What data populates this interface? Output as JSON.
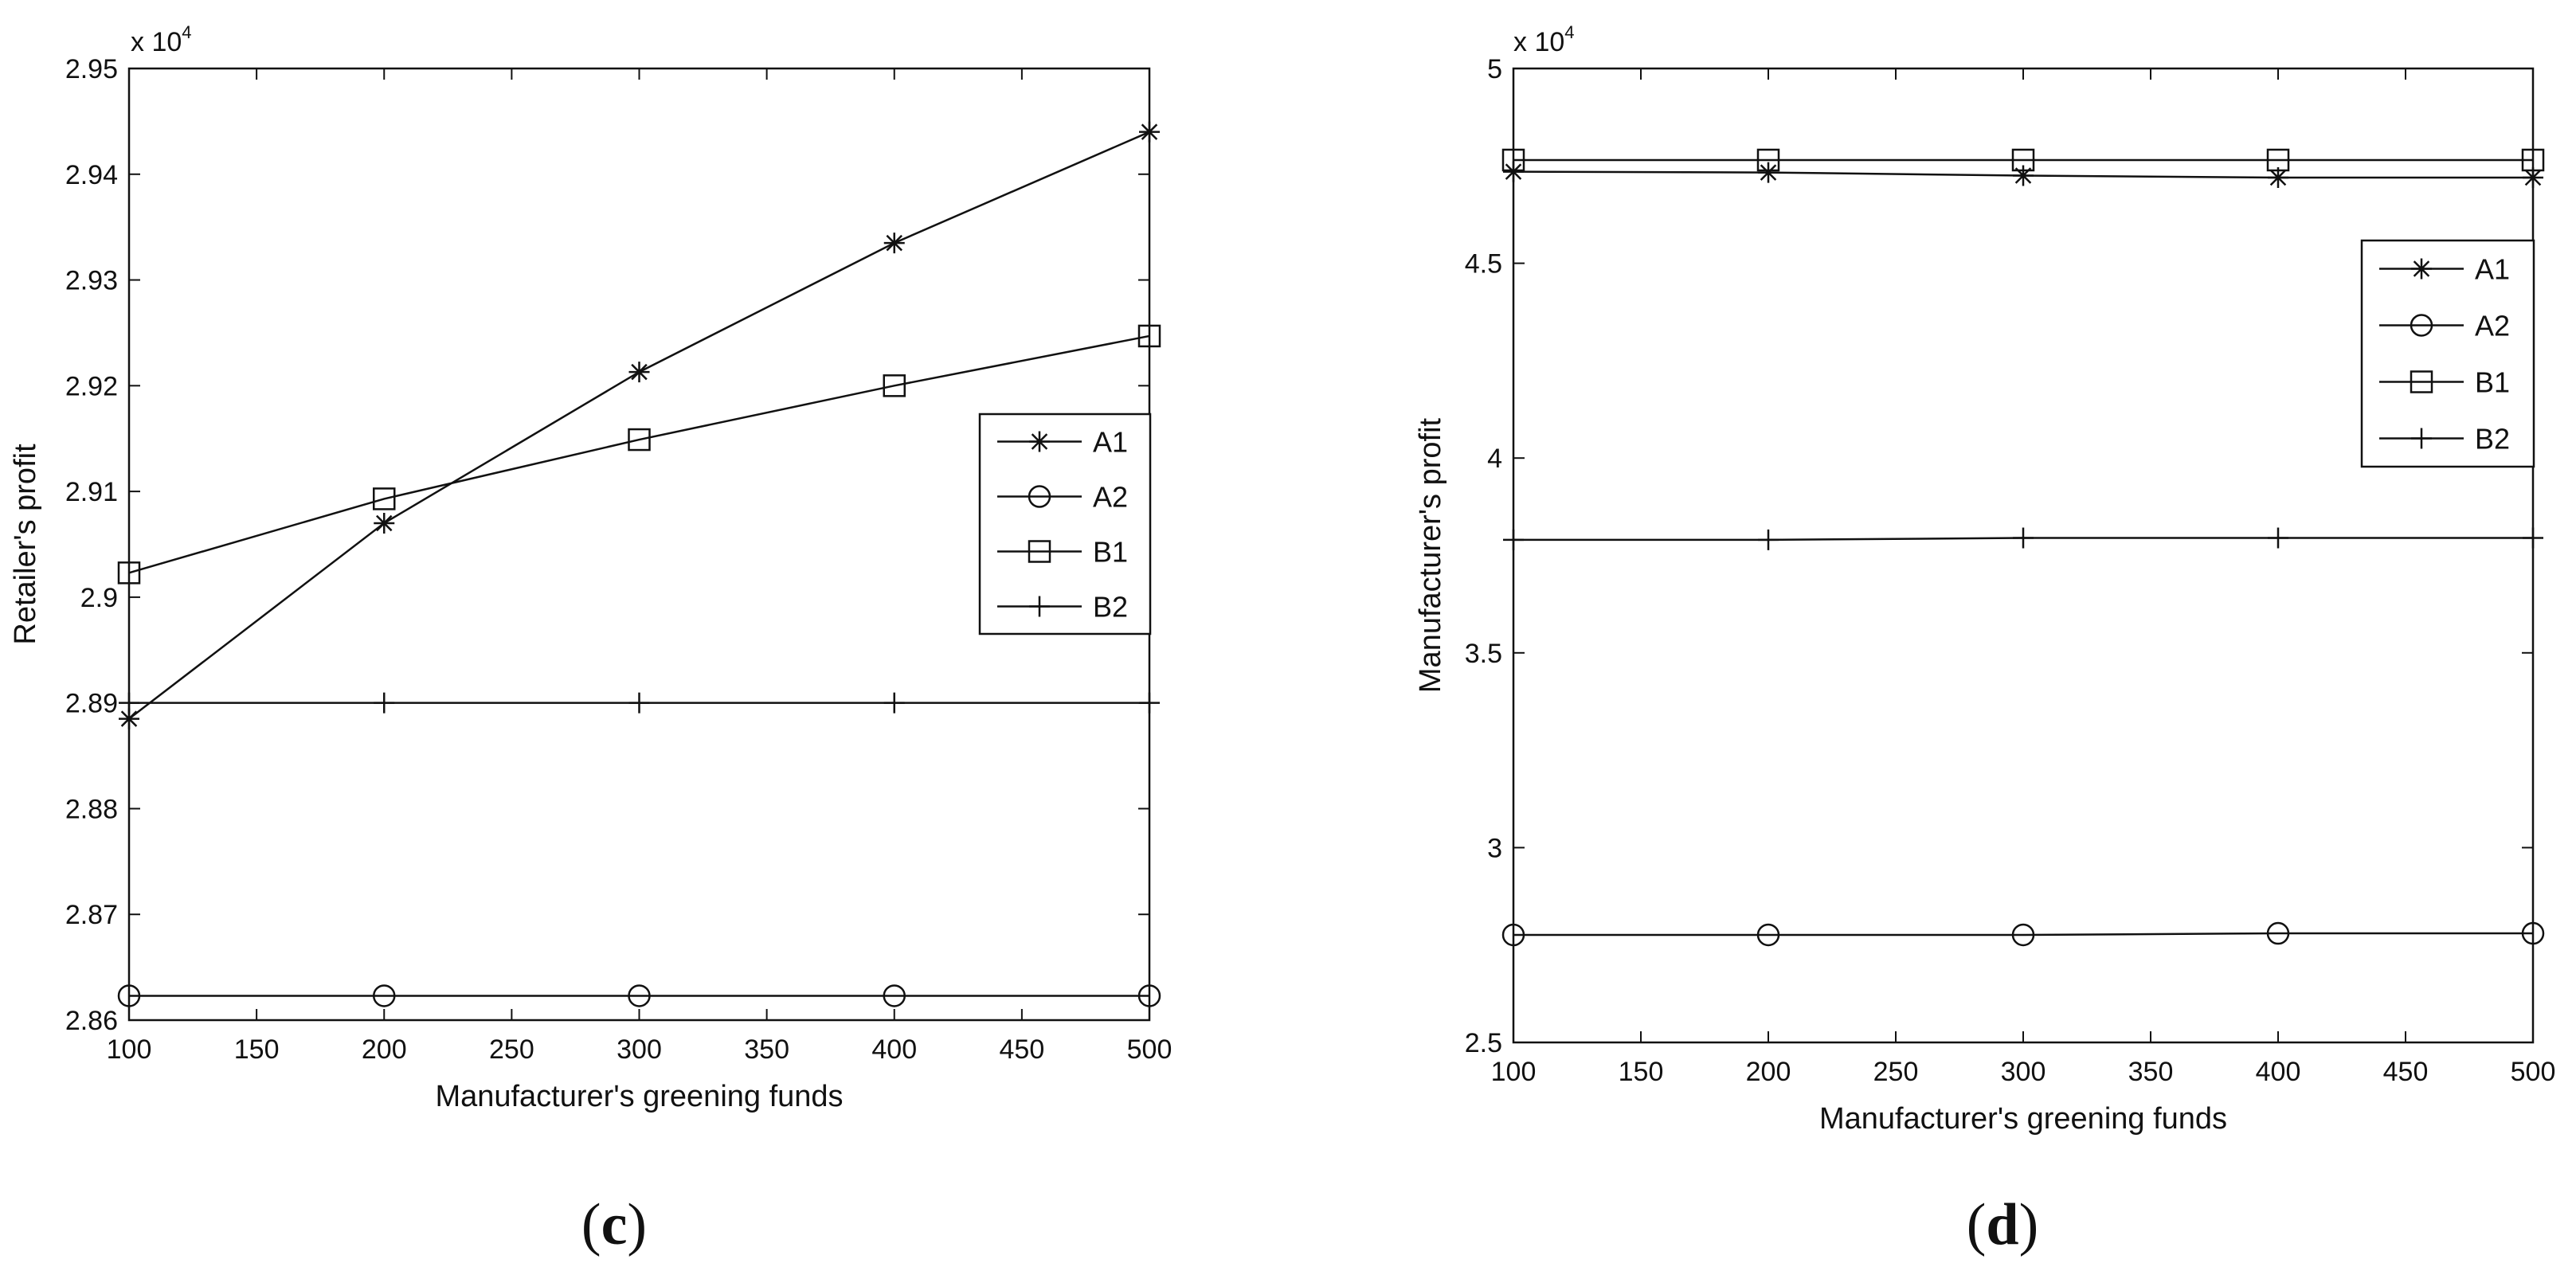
{
  "chart_data": [
    {
      "type": "line",
      "panel_label": "(c)",
      "panel_letter": "c",
      "xlabel": "Manufacturer's greening funds",
      "ylabel": "Retailer's profit",
      "y_multiplier": "x 10",
      "y_multiplier_exp": "4",
      "xlim": [
        100,
        500
      ],
      "ylim": [
        2.86,
        2.95
      ],
      "xticks": [
        100,
        150,
        200,
        250,
        300,
        350,
        400,
        450,
        500
      ],
      "yticks": [
        2.86,
        2.87,
        2.88,
        2.89,
        2.9,
        2.91,
        2.92,
        2.93,
        2.94,
        2.95
      ],
      "ytick_labels": [
        "2.86",
        "2.87",
        "2.88",
        "2.89",
        "2.9",
        "2.91",
        "2.92",
        "2.93",
        "2.94",
        "2.95"
      ],
      "x": [
        100,
        200,
        300,
        400,
        500
      ],
      "legend_position": "right",
      "series": [
        {
          "name": "A1",
          "marker": "star",
          "values": [
            2.8885,
            2.907,
            2.9213,
            2.9335,
            2.944
          ]
        },
        {
          "name": "A2",
          "marker": "circle",
          "values": [
            2.8623,
            2.8623,
            2.8623,
            2.8623,
            2.8623
          ]
        },
        {
          "name": "B1",
          "marker": "square",
          "values": [
            2.9023,
            2.9093,
            2.9149,
            2.92,
            2.9247
          ]
        },
        {
          "name": "B2",
          "marker": "plus",
          "values": [
            2.89,
            2.89,
            2.89,
            2.89,
            2.89
          ]
        }
      ]
    },
    {
      "type": "line",
      "panel_label": "(d)",
      "panel_letter": "d",
      "xlabel": "Manufacturer's greening funds",
      "ylabel": "Manufacturer's profit",
      "y_multiplier": "x 10",
      "y_multiplier_exp": "4",
      "xlim": [
        100,
        500
      ],
      "ylim": [
        2.5,
        5
      ],
      "xticks": [
        100,
        150,
        200,
        250,
        300,
        350,
        400,
        450,
        500
      ],
      "yticks": [
        2.5,
        3,
        3.5,
        4,
        4.5,
        5
      ],
      "ytick_labels": [
        "2.5",
        "3",
        "3.5",
        "4",
        "4.5",
        "5"
      ],
      "x": [
        100,
        200,
        300,
        400,
        500
      ],
      "legend_position": "top-right",
      "series": [
        {
          "name": "A1",
          "marker": "star",
          "values": [
            4.735,
            4.733,
            4.725,
            4.72,
            4.72
          ]
        },
        {
          "name": "A2",
          "marker": "circle",
          "values": [
            2.776,
            2.776,
            2.776,
            2.78,
            2.78
          ]
        },
        {
          "name": "B1",
          "marker": "square",
          "values": [
            4.765,
            4.765,
            4.765,
            4.765,
            4.765
          ]
        },
        {
          "name": "B2",
          "marker": "plus",
          "values": [
            3.79,
            3.79,
            3.795,
            3.795,
            3.795
          ]
        }
      ]
    }
  ]
}
